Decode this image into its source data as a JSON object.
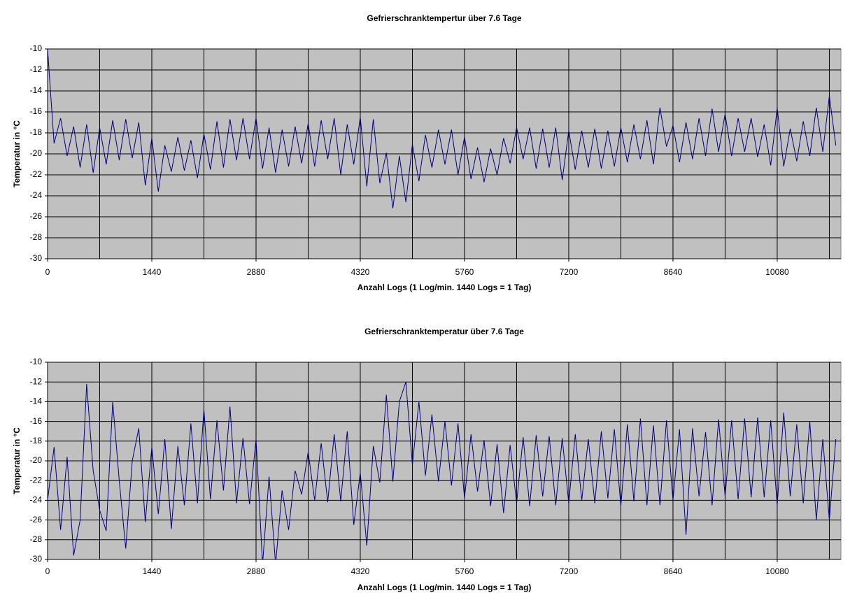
{
  "chart_data": [
    {
      "type": "line",
      "title": "Gefrierschranktempertur über 7.6 Tage",
      "x_label": "Anzahl Logs (1 Log/min. 1440 Logs = 1 Tag)",
      "y_label": "Temperatur in °C",
      "xlim": [
        0,
        10960
      ],
      "xticks": [
        0,
        1440,
        2880,
        4320,
        5760,
        7200,
        8640,
        10080
      ],
      "xminor": [
        720,
        2160,
        3600,
        5040,
        6480,
        7920,
        9360,
        10800
      ],
      "ylim": [
        -30,
        -10
      ],
      "yticks": [
        -30,
        -28,
        -26,
        -24,
        -22,
        -20,
        -18,
        -16,
        -14,
        -12,
        -10
      ],
      "grid": true,
      "background": "#c0c0c0",
      "x": [
        0,
        90,
        180,
        270,
        360,
        450,
        540,
        630,
        720,
        810,
        900,
        990,
        1080,
        1170,
        1260,
        1350,
        1440,
        1530,
        1620,
        1710,
        1800,
        1890,
        1980,
        2070,
        2160,
        2250,
        2340,
        2430,
        2520,
        2610,
        2700,
        2790,
        2880,
        2970,
        3060,
        3150,
        3240,
        3330,
        3420,
        3510,
        3600,
        3690,
        3780,
        3870,
        3960,
        4050,
        4140,
        4230,
        4320,
        4410,
        4500,
        4590,
        4680,
        4770,
        4860,
        4950,
        5040,
        5130,
        5220,
        5310,
        5400,
        5490,
        5580,
        5670,
        5760,
        5850,
        5940,
        6030,
        6120,
        6210,
        6300,
        6390,
        6480,
        6570,
        6660,
        6750,
        6840,
        6930,
        7020,
        7110,
        7200,
        7290,
        7380,
        7470,
        7560,
        7650,
        7740,
        7830,
        7920,
        8010,
        8100,
        8190,
        8280,
        8370,
        8460,
        8550,
        8640,
        8730,
        8820,
        8910,
        9000,
        9090,
        9180,
        9270,
        9360,
        9450,
        9540,
        9630,
        9720,
        9810,
        9900,
        9990,
        10080,
        10170,
        10260,
        10350,
        10440,
        10530,
        10620,
        10710,
        10800,
        10890
      ],
      "series": [
        {
          "name": "Temperatur",
          "color": "#000080",
          "values": [
            -10,
            -19,
            -16.6,
            -20.2,
            -17.4,
            -21.3,
            -17.2,
            -21.8,
            -17.5,
            -21,
            -16.8,
            -20.6,
            -16.7,
            -20.4,
            -17,
            -23,
            -18.5,
            -23.6,
            -19.2,
            -21.7,
            -18.4,
            -21.6,
            -18.7,
            -22.3,
            -18.1,
            -21.5,
            -16.9,
            -21.3,
            -16.7,
            -20.6,
            -16.6,
            -20.5,
            -16.6,
            -21.4,
            -17.5,
            -21.8,
            -17.7,
            -21.2,
            -17.4,
            -20.9,
            -17.1,
            -21.2,
            -16.8,
            -20.5,
            -16.6,
            -22,
            -17.2,
            -21,
            -16.5,
            -23.1,
            -16.7,
            -22.8,
            -19.9,
            -25.2,
            -20.2,
            -24.6,
            -19.1,
            -22.6,
            -18.2,
            -21.3,
            -17.7,
            -21,
            -17.7,
            -22,
            -18.4,
            -22.4,
            -19.4,
            -22.7,
            -19.5,
            -22,
            -18.5,
            -20.9,
            -17.5,
            -20.5,
            -17.5,
            -21.4,
            -17.6,
            -21.3,
            -17.5,
            -22.5,
            -17.8,
            -21.5,
            -17.8,
            -21.3,
            -17.6,
            -21.4,
            -17.8,
            -21.2,
            -17.5,
            -20.8,
            -17.2,
            -20.5,
            -16.8,
            -21,
            -15.6,
            -19.3,
            -17.3,
            -20.8,
            -17,
            -20.5,
            -16.6,
            -20.2,
            -15.7,
            -19.8,
            -16.2,
            -20.2,
            -16.6,
            -19.8,
            -16.6,
            -20.3,
            -17.2,
            -21.1,
            -15.6,
            -21.2,
            -17.6,
            -20.7,
            -16.9,
            -20.2,
            -15.6,
            -19.8,
            -14.5,
            -19.2
          ]
        }
      ]
    },
    {
      "type": "line",
      "title": "Gefrierschranktemperatur über 7.6 Tage",
      "x_label": "Anzahl Logs (1 Log/min. 1440 Logs = 1 Tag)",
      "y_label": "Temperatur in °C",
      "xlim": [
        0,
        10960
      ],
      "xticks": [
        0,
        1440,
        2880,
        4320,
        5760,
        7200,
        8640,
        10080
      ],
      "xminor": [
        720,
        2160,
        3600,
        5040,
        6480,
        7920,
        9360,
        10800
      ],
      "ylim": [
        -30,
        -10
      ],
      "yticks": [
        -30,
        -28,
        -26,
        -24,
        -22,
        -20,
        -18,
        -16,
        -14,
        -12,
        -10
      ],
      "grid": true,
      "background": "#c0c0c0",
      "x": [
        0,
        90,
        180,
        270,
        360,
        450,
        540,
        630,
        720,
        810,
        900,
        990,
        1080,
        1170,
        1260,
        1350,
        1440,
        1530,
        1620,
        1710,
        1800,
        1890,
        1980,
        2070,
        2160,
        2250,
        2340,
        2430,
        2520,
        2610,
        2700,
        2790,
        2880,
        2970,
        3060,
        3150,
        3240,
        3330,
        3420,
        3510,
        3600,
        3690,
        3780,
        3870,
        3960,
        4050,
        4140,
        4230,
        4320,
        4410,
        4500,
        4590,
        4680,
        4770,
        4860,
        4950,
        5040,
        5130,
        5220,
        5310,
        5400,
        5490,
        5580,
        5670,
        5760,
        5850,
        5940,
        6030,
        6120,
        6210,
        6300,
        6390,
        6480,
        6570,
        6660,
        6750,
        6840,
        6930,
        7020,
        7110,
        7200,
        7290,
        7380,
        7470,
        7560,
        7650,
        7740,
        7830,
        7920,
        8010,
        8100,
        8190,
        8280,
        8370,
        8460,
        8550,
        8640,
        8730,
        8820,
        8910,
        9000,
        9090,
        9180,
        9270,
        9360,
        9450,
        9540,
        9630,
        9720,
        9810,
        9900,
        9990,
        10080,
        10170,
        10260,
        10350,
        10440,
        10530,
        10620,
        10710,
        10800,
        10890
      ],
      "series": [
        {
          "name": "Temperatur",
          "color": "#000080",
          "values": [
            -24,
            -18.6,
            -27,
            -19.6,
            -29.6,
            -26,
            -12.2,
            -21,
            -25,
            -27.1,
            -14,
            -22,
            -28.9,
            -20,
            -16.7,
            -26.2,
            -18.6,
            -25.4,
            -17.8,
            -26.9,
            -18.5,
            -24.5,
            -16.2,
            -24.3,
            -14.8,
            -23.9,
            -15.9,
            -23,
            -14.5,
            -24.3,
            -17.7,
            -24.4,
            -17.8,
            -30.5,
            -21.6,
            -30.5,
            -23,
            -27,
            -21,
            -23.4,
            -19.1,
            -24,
            -18.2,
            -24.2,
            -17.3,
            -24.1,
            -17,
            -26.5,
            -21.2,
            -28.6,
            -18.5,
            -22.2,
            -13.3,
            -22.1,
            -14,
            -12,
            -20.4,
            -14,
            -21.5,
            -15.3,
            -22.1,
            -16,
            -22.5,
            -16.2,
            -23.8,
            -17.3,
            -23.1,
            -17.9,
            -24.6,
            -18.3,
            -25.3,
            -18.4,
            -24.3,
            -17.6,
            -24.6,
            -17.4,
            -23.6,
            -17.5,
            -24.5,
            -17.7,
            -24.3,
            -17.3,
            -24,
            -17.8,
            -24.3,
            -17,
            -23.8,
            -16.8,
            -24.6,
            -16.3,
            -24.1,
            -15.7,
            -24.5,
            -16.4,
            -24.5,
            -15.9,
            -24,
            -16.8,
            -27.5,
            -16.7,
            -23.6,
            -17.1,
            -24.5,
            -15.8,
            -23.6,
            -15.9,
            -23.9,
            -15.7,
            -23.7,
            -15.6,
            -23.7,
            -15.9,
            -24.5,
            -15.1,
            -23.6,
            -16.3,
            -24.3,
            -16,
            -26,
            -17.8,
            -26,
            -17.8
          ]
        }
      ]
    }
  ]
}
